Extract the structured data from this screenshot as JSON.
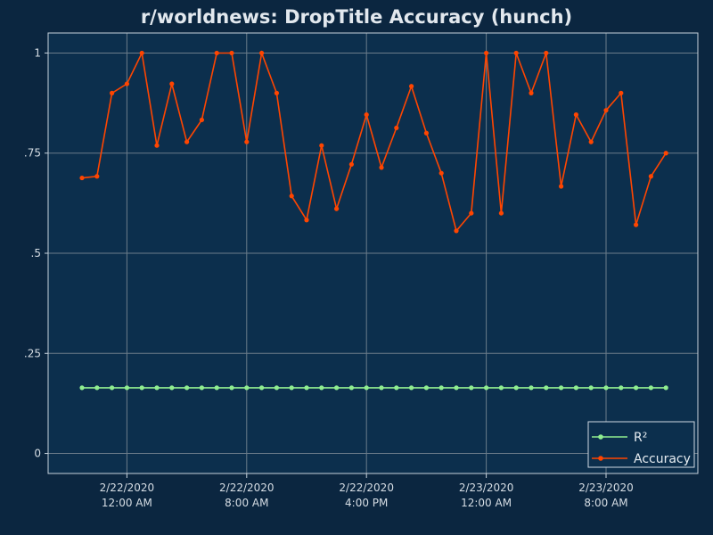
{
  "chart_data": {
    "type": "line",
    "title": "r/worldnews: DropTitle Accuracy (hunch)",
    "xlabel": "",
    "ylabel": "",
    "ylim": [
      -0.05,
      1.05
    ],
    "y_ticks": [
      {
        "value": 0,
        "label": "0"
      },
      {
        "value": 0.25,
        "label": ".25"
      },
      {
        "value": 0.5,
        "label": ".5"
      },
      {
        "value": 0.75,
        "label": ".75"
      },
      {
        "value": 1,
        "label": "1"
      }
    ],
    "x_ticks": [
      {
        "index": 3,
        "date": "2/22/2020",
        "time": "12:00 AM"
      },
      {
        "index": 11,
        "date": "2/22/2020",
        "time": "8:00 AM"
      },
      {
        "index": 19,
        "date": "2/22/2020",
        "time": "4:00 PM"
      },
      {
        "index": 27,
        "date": "2/23/2020",
        "time": "12:00 AM"
      },
      {
        "index": 35,
        "date": "2/23/2020",
        "time": "8:00 AM"
      }
    ],
    "x_hours": [
      -3,
      -2,
      -1,
      0,
      1,
      2,
      3,
      4,
      5,
      6,
      7,
      8,
      9,
      10,
      11,
      12,
      13,
      14,
      15,
      16,
      17,
      18,
      19,
      20,
      21,
      22,
      23,
      24,
      25,
      26,
      27,
      28,
      29,
      30,
      31,
      32,
      33,
      34,
      35,
      36,
      37,
      38,
      39,
      40
    ],
    "grid": true,
    "legend_position": "bottom-right",
    "series": [
      {
        "name": "R²",
        "color": "#90ee90",
        "values": [
          0.164,
          0.164,
          0.164,
          0.164,
          0.164,
          0.164,
          0.164,
          0.164,
          0.164,
          0.164,
          0.164,
          0.164,
          0.164,
          0.164,
          0.164,
          0.164,
          0.164,
          0.164,
          0.164,
          0.164,
          0.164,
          0.164,
          0.164,
          0.164,
          0.164,
          0.164,
          0.164,
          0.164,
          0.164,
          0.164,
          0.164,
          0.164,
          0.164,
          0.164,
          0.164,
          0.164,
          0.164,
          0.164,
          0.164,
          0.164
        ]
      },
      {
        "name": "Accuracy",
        "color": "#ff4500",
        "values": [
          0.688,
          0.692,
          0.9,
          0.923,
          1.0,
          0.769,
          0.923,
          0.778,
          0.833,
          1.0,
          1.0,
          0.778,
          1.0,
          0.9,
          0.643,
          0.583,
          0.769,
          0.611,
          0.722,
          0.846,
          0.714,
          0.813,
          0.917,
          0.8,
          0.7,
          0.556,
          0.6,
          1.0,
          0.6,
          1.0,
          0.9,
          1.0,
          0.667,
          0.846,
          0.778,
          0.857,
          0.9,
          0.571,
          0.692,
          0.75
        ]
      }
    ]
  },
  "colors": {
    "page_background": "#0b2640",
    "plot_background": "#0c2f4d",
    "axis_line": "#c7d3dd",
    "grid_line": "#6b7c8a"
  }
}
